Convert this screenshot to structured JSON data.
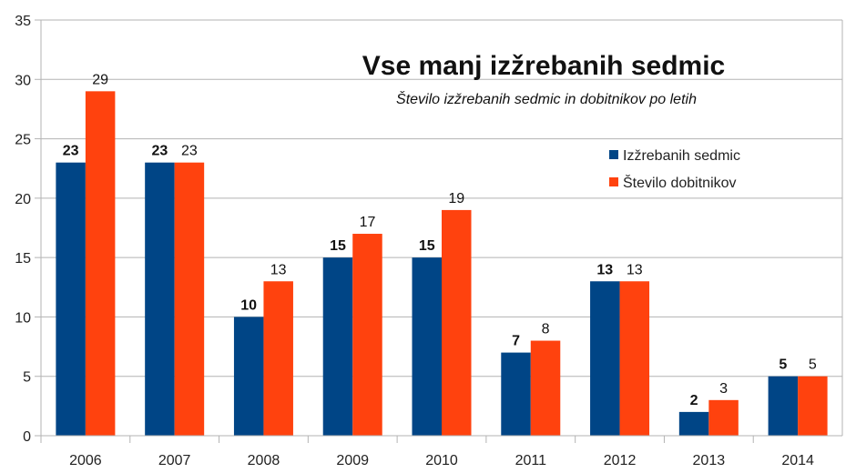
{
  "chart_data": {
    "type": "bar",
    "title": "Vse manj izžrebanih sedmic",
    "subtitle": "Število izžrebanih sedmic in dobitnikov po letih",
    "xlabel": "",
    "ylabel": "",
    "ylim": [
      0,
      35
    ],
    "yticks": [
      0,
      5,
      10,
      15,
      20,
      25,
      30,
      35
    ],
    "grid": true,
    "legend_position": "right",
    "categories": [
      "2006",
      "2007",
      "2008",
      "2009",
      "2010",
      "2011",
      "2012",
      "2013",
      "2014"
    ],
    "series": [
      {
        "name": "Izžrebanih sedmic",
        "color": "#004586",
        "label_bold": true,
        "values": [
          23,
          23,
          10,
          15,
          15,
          7,
          13,
          2,
          5
        ]
      },
      {
        "name": "Število dobitnikov",
        "color": "#ff420e",
        "label_bold": false,
        "values": [
          29,
          23,
          13,
          17,
          19,
          8,
          13,
          3,
          5
        ]
      }
    ]
  }
}
